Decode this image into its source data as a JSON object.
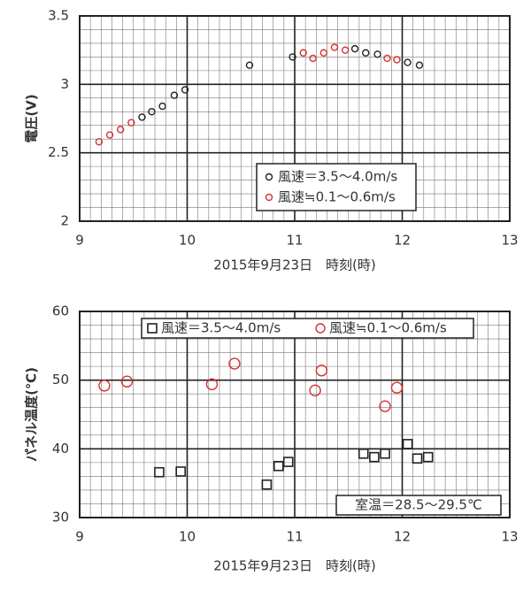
{
  "chart_data": [
    {
      "type": "scatter",
      "xlabel": "2015年9月23日　時刻(時)",
      "ylabel": "電圧(V)",
      "xlim": [
        9,
        13
      ],
      "xticks": [
        9,
        10,
        11,
        12,
        13
      ],
      "ylim": [
        2,
        3.5
      ],
      "yticks": [
        2,
        2.5,
        3,
        3.5
      ],
      "grid": true,
      "minor_grid": {
        "x": 0.1,
        "y": 0.1
      },
      "legend": "lower right",
      "series": [
        {
          "name": "風速＝3.5～4.0m/s",
          "color": "#222222",
          "marker": "circle",
          "x": [
            9.58,
            9.67,
            9.77,
            9.88,
            9.98,
            10.58,
            10.98,
            11.56,
            11.66,
            11.77,
            12.05,
            12.16
          ],
          "values": [
            2.76,
            2.8,
            2.84,
            2.92,
            2.96,
            3.14,
            3.2,
            3.26,
            3.23,
            3.22,
            3.16,
            3.14
          ]
        },
        {
          "name": "風速≒0.1～0.6m/s",
          "color": "#d83030",
          "marker": "circle",
          "x": [
            9.18,
            9.28,
            9.38,
            9.48,
            11.08,
            11.17,
            11.27,
            11.37,
            11.47,
            11.86,
            11.95
          ],
          "values": [
            2.58,
            2.63,
            2.67,
            2.72,
            3.23,
            3.19,
            3.23,
            3.27,
            3.25,
            3.19,
            3.18
          ]
        }
      ]
    },
    {
      "type": "scatter",
      "xlabel": "2015年9月23日　時刻(時)",
      "ylabel": "パネル温度(℃)",
      "xlim": [
        9,
        13
      ],
      "xticks": [
        9,
        10,
        11,
        12,
        13
      ],
      "ylim": [
        30,
        60
      ],
      "yticks": [
        30,
        40,
        50,
        60
      ],
      "grid": true,
      "minor_grid": {
        "x": 0.1,
        "y": 2
      },
      "legend": "upper center",
      "annotation": "室温＝28.5～29.5℃",
      "series": [
        {
          "name": "風速＝3.5～4.0m/s",
          "color": "#222222",
          "marker": "square",
          "x": [
            9.74,
            9.94,
            10.74,
            10.85,
            10.94,
            11.64,
            11.74,
            11.84,
            12.05,
            12.14,
            12.24
          ],
          "values": [
            36.6,
            36.7,
            34.8,
            37.5,
            38.1,
            39.3,
            38.8,
            39.3,
            40.7,
            38.6,
            38.8
          ]
        },
        {
          "name": "風速≒0.1～0.6m/s",
          "color": "#d83030",
          "marker": "circle",
          "x": [
            9.23,
            9.44,
            10.23,
            10.44,
            11.19,
            11.25,
            11.84,
            11.95
          ],
          "values": [
            49.2,
            49.8,
            49.4,
            52.4,
            48.5,
            51.4,
            46.2,
            48.9
          ]
        }
      ]
    }
  ]
}
